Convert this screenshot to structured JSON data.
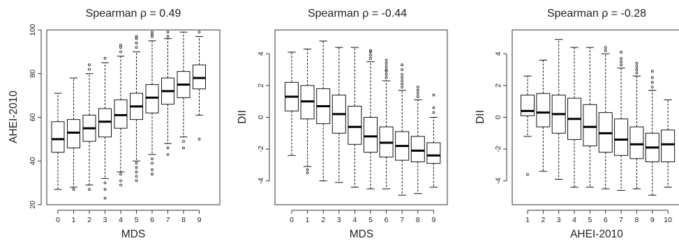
{
  "chart_data": [
    {
      "type": "boxplot",
      "title": "Spearman ρ = 0.49",
      "xlabel": "MDS",
      "ylabel": "AHEI-2010",
      "ylim": [
        20,
        100
      ],
      "yticks": [
        20,
        40,
        60,
        80,
        100
      ],
      "categories": [
        "0",
        "1",
        "2",
        "3",
        "4",
        "5",
        "6",
        "7",
        "8",
        "9"
      ],
      "boxes": [
        {
          "whisker_low": 27,
          "q1": 44,
          "median": 50,
          "q3": 58,
          "whisker_high": 71,
          "outliers_low": [],
          "outliers_high": []
        },
        {
          "whisker_low": 28,
          "q1": 46,
          "median": 53,
          "q3": 59,
          "whisker_high": 78,
          "outliers_low": [
            27
          ],
          "outliers_high": []
        },
        {
          "whisker_low": 29,
          "q1": 49,
          "median": 55,
          "q3": 61,
          "whisker_high": 80,
          "outliers_low": [
            27
          ],
          "outliers_high": [
            82,
            84
          ]
        },
        {
          "whisker_low": 32,
          "q1": 51,
          "median": 58,
          "q3": 64,
          "whisker_high": 85,
          "outliers_low": [
            30,
            27,
            23
          ],
          "outliers_high": [
            87
          ]
        },
        {
          "whisker_low": 35,
          "q1": 55,
          "median": 61,
          "q3": 68,
          "whisker_high": 88,
          "outliers_low": [
            34,
            31,
            29
          ],
          "outliers_high": [
            90,
            92,
            93
          ]
        },
        {
          "whisker_low": 40,
          "q1": 59,
          "median": 65,
          "q3": 71,
          "whisker_high": 90,
          "outliers_low": [
            39,
            37,
            35,
            33,
            31
          ],
          "outliers_high": [
            92,
            94,
            96,
            97
          ]
        },
        {
          "whisker_low": 43,
          "q1": 62,
          "median": 69,
          "q3": 75,
          "whisker_high": 95,
          "outliers_low": [
            41,
            39,
            36,
            34
          ],
          "outliers_high": [
            97,
            98,
            99
          ]
        },
        {
          "whisker_low": 48,
          "q1": 66,
          "median": 72,
          "q3": 78,
          "whisker_high": 96,
          "outliers_low": [
            46,
            43
          ],
          "outliers_high": [
            97,
            99
          ]
        },
        {
          "whisker_low": 51,
          "q1": 69,
          "median": 75,
          "q3": 81,
          "whisker_high": 99,
          "outliers_low": [
            49,
            46
          ],
          "outliers_high": []
        },
        {
          "whisker_low": 61,
          "q1": 73,
          "median": 78,
          "q3": 84,
          "whisker_high": 97,
          "outliers_low": [
            50
          ],
          "outliers_high": [
            99
          ]
        }
      ]
    },
    {
      "type": "boxplot",
      "title": "Spearman ρ = -0.44",
      "xlabel": "MDS",
      "ylabel": "DII",
      "ylim": [
        -5.5,
        5.5
      ],
      "yticks": [
        -4,
        -2,
        0,
        2,
        4
      ],
      "categories": [
        "0",
        "1",
        "2",
        "3",
        "4",
        "5",
        "6",
        "7",
        "8",
        "9"
      ],
      "boxes": [
        {
          "whisker_low": -2.4,
          "q1": 0.4,
          "median": 1.3,
          "q3": 2.2,
          "whisker_high": 4.1,
          "outliers_low": [],
          "outliers_high": []
        },
        {
          "whisker_low": -3.1,
          "q1": -0.1,
          "median": 1.0,
          "q3": 2.0,
          "whisker_high": 4.3,
          "outliers_low": [
            -3.3,
            -3.5
          ],
          "outliers_high": []
        },
        {
          "whisker_low": -4.0,
          "q1": -0.4,
          "median": 0.7,
          "q3": 1.8,
          "whisker_high": 4.8,
          "outliers_low": [],
          "outliers_high": []
        },
        {
          "whisker_low": -4.1,
          "q1": -1.0,
          "median": 0.2,
          "q3": 1.4,
          "whisker_high": 4.4,
          "outliers_low": [],
          "outliers_high": []
        },
        {
          "whisker_low": -4.4,
          "q1": -1.7,
          "median": -0.6,
          "q3": 0.7,
          "whisker_high": 4.4,
          "outliers_low": [],
          "outliers_high": []
        },
        {
          "whisker_low": -4.5,
          "q1": -2.2,
          "median": -1.2,
          "q3": 0.0,
          "whisker_high": 3.5,
          "outliers_low": [],
          "outliers_high": [
            3.7,
            3.9,
            4.1,
            4.2
          ]
        },
        {
          "whisker_low": -4.5,
          "q1": -2.5,
          "median": -1.6,
          "q3": -0.6,
          "whisker_high": 2.3,
          "outliers_low": [],
          "outliers_high": [
            2.5,
            2.7,
            2.9,
            3.0,
            3.2,
            3.4,
            3.6
          ]
        },
        {
          "whisker_low": -4.9,
          "q1": -2.7,
          "median": -1.8,
          "q3": -0.9,
          "whisker_high": 1.7,
          "outliers_low": [],
          "outliers_high": [
            1.9,
            2.1,
            2.3,
            2.5,
            2.7,
            3.0,
            3.3
          ]
        },
        {
          "whisker_low": -4.8,
          "q1": -2.8,
          "median": -2.1,
          "q3": -1.2,
          "whisker_high": 1.1,
          "outliers_low": [],
          "outliers_high": [
            1.3,
            1.5,
            1.7,
            1.9
          ]
        },
        {
          "whisker_low": -4.4,
          "q1": -2.9,
          "median": -2.4,
          "q3": -1.6,
          "whisker_high": 0.0,
          "outliers_low": [],
          "outliers_high": [
            0.3,
            0.6,
            1.4
          ]
        }
      ]
    },
    {
      "type": "boxplot",
      "title": "Spearman ρ = -0.28",
      "xlabel": "AHEI-2010",
      "ylabel": "DII",
      "ylim": [
        -5.5,
        5.5
      ],
      "yticks": [
        -4,
        -2,
        0,
        2,
        4
      ],
      "categories": [
        "1",
        "2",
        "3",
        "4",
        "5",
        "6",
        "7",
        "8",
        "9",
        "10"
      ],
      "boxes": [
        {
          "whisker_low": -1.2,
          "q1": 0.1,
          "median": 0.4,
          "q3": 1.4,
          "whisker_high": 2.6,
          "outliers_low": [
            -3.6
          ],
          "outliers_high": []
        },
        {
          "whisker_low": -3.4,
          "q1": -0.6,
          "median": 0.3,
          "q3": 1.5,
          "whisker_high": 3.6,
          "outliers_low": [],
          "outliers_high": []
        },
        {
          "whisker_low": -3.9,
          "q1": -1.0,
          "median": 0.2,
          "q3": 1.4,
          "whisker_high": 4.9,
          "outliers_low": [],
          "outliers_high": []
        },
        {
          "whisker_low": -4.4,
          "q1": -1.4,
          "median": -0.1,
          "q3": 1.2,
          "whisker_high": 4.4,
          "outliers_low": [],
          "outliers_high": []
        },
        {
          "whisker_low": -4.4,
          "q1": -1.8,
          "median": -0.6,
          "q3": 0.8,
          "whisker_high": 4.4,
          "outliers_low": [],
          "outliers_high": []
        },
        {
          "whisker_low": -4.5,
          "q1": -2.2,
          "median": -1.0,
          "q3": 0.3,
          "whisker_high": 4.0,
          "outliers_low": [],
          "outliers_high": [
            4.2,
            4.4
          ]
        },
        {
          "whisker_low": -4.6,
          "q1": -2.4,
          "median": -1.4,
          "q3": -0.1,
          "whisker_high": 3.1,
          "outliers_low": [],
          "outliers_high": [
            3.3,
            3.5,
            3.7,
            4.1
          ]
        },
        {
          "whisker_low": -4.5,
          "q1": -2.6,
          "median": -1.7,
          "q3": -0.6,
          "whisker_high": 2.6,
          "outliers_low": [],
          "outliers_high": [
            2.8,
            3.0,
            3.2,
            3.4
          ]
        },
        {
          "whisker_low": -4.9,
          "q1": -2.8,
          "median": -1.9,
          "q3": -1.0,
          "whisker_high": 1.7,
          "outliers_low": [],
          "outliers_high": [
            1.9,
            2.2,
            2.5,
            2.9
          ]
        },
        {
          "whisker_low": -4.4,
          "q1": -2.8,
          "median": -1.7,
          "q3": -0.8,
          "whisker_high": 1.1,
          "outliers_low": [],
          "outliers_high": []
        }
      ]
    }
  ]
}
